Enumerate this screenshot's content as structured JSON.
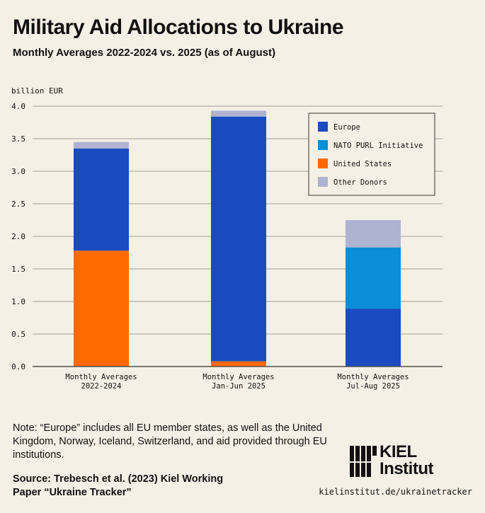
{
  "header": {
    "title": "Military Aid Allocations to Ukraine",
    "subtitle": "Monthly Averages 2022-2024 vs. 2025 (as of August)"
  },
  "chart_data": {
    "type": "bar",
    "stacked": true,
    "ylabel": "billion EUR",
    "ylim": [
      0,
      4.0
    ],
    "yticks": [
      "0.0",
      "0.5",
      "1.0",
      "1.5",
      "2.0",
      "2.5",
      "3.0",
      "3.5",
      "4.0"
    ],
    "grid": true,
    "legend_position": "top-right",
    "categories": [
      [
        "Monthly Averages",
        "2022-2024"
      ],
      [
        "Monthly Averages",
        "Jan-Jun 2025"
      ],
      [
        "Monthly Averages",
        "Jul-Aug 2025"
      ]
    ],
    "series": [
      {
        "name": "United States",
        "color": "#ff6a00",
        "values": [
          1.78,
          0.08,
          0
        ]
      },
      {
        "name": "Europe",
        "color": "#1a4bbf",
        "values": [
          1.57,
          3.76,
          0.89
        ]
      },
      {
        "name": "NATO PURL Initiative",
        "color": "#0a8fd6",
        "values": [
          0,
          0,
          0.94
        ]
      },
      {
        "name": "Other Donors",
        "color": "#aeb3d1",
        "values": [
          0.1,
          0.09,
          0.42
        ]
      }
    ],
    "legend_order": [
      "Europe",
      "NATO PURL Initiative",
      "United States",
      "Other Donors"
    ]
  },
  "footer": {
    "note": "Note: “Europe” includes all EU member states, as well as the United Kingdom, Norway, Iceland, Switzerland, and aid provided through EU institutions.",
    "source": "Source: Trebesch et al. (2023) Kiel Working Paper “Ukraine Tracker”",
    "logo_line1": "KIEL",
    "logo_line2": "Institut",
    "url": "kielinstitut.de/ukrainetracker"
  }
}
